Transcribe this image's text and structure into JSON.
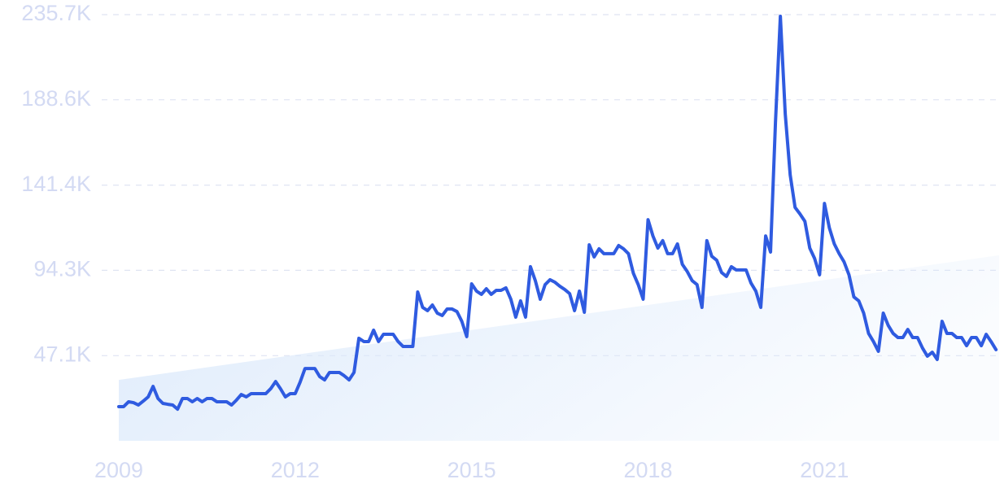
{
  "chart_data": {
    "type": "line",
    "x": [
      2009,
      2009.083,
      2009.167,
      2009.25,
      2009.333,
      2009.417,
      2009.5,
      2009.583,
      2009.667,
      2009.75,
      2009.833,
      2009.917,
      2010,
      2010.083,
      2010.167,
      2010.25,
      2010.333,
      2010.417,
      2010.5,
      2010.583,
      2010.667,
      2010.75,
      2010.833,
      2010.917,
      2011,
      2011.083,
      2011.167,
      2011.25,
      2011.333,
      2011.417,
      2011.5,
      2011.583,
      2011.667,
      2011.75,
      2011.833,
      2011.917,
      2012,
      2012.083,
      2012.167,
      2012.25,
      2012.333,
      2012.417,
      2012.5,
      2012.583,
      2012.667,
      2012.75,
      2012.833,
      2012.917,
      2013,
      2013.083,
      2013.167,
      2013.25,
      2013.333,
      2013.417,
      2013.5,
      2013.583,
      2013.667,
      2013.75,
      2013.833,
      2013.917,
      2014,
      2014.083,
      2014.167,
      2014.25,
      2014.333,
      2014.417,
      2014.5,
      2014.583,
      2014.667,
      2014.75,
      2014.833,
      2014.917,
      2015,
      2015.083,
      2015.167,
      2015.25,
      2015.333,
      2015.417,
      2015.5,
      2015.583,
      2015.667,
      2015.75,
      2015.833,
      2015.917,
      2016,
      2016.083,
      2016.167,
      2016.25,
      2016.333,
      2016.417,
      2016.5,
      2016.583,
      2016.667,
      2016.75,
      2016.833,
      2016.917,
      2017,
      2017.083,
      2017.167,
      2017.25,
      2017.333,
      2017.417,
      2017.5,
      2017.583,
      2017.667,
      2017.75,
      2017.833,
      2017.917,
      2018,
      2018.083,
      2018.167,
      2018.25,
      2018.333,
      2018.417,
      2018.5,
      2018.583,
      2018.667,
      2018.75,
      2018.833,
      2018.917,
      2019,
      2019.083,
      2019.167,
      2019.25,
      2019.333,
      2019.417,
      2019.5,
      2019.583,
      2019.667,
      2019.75,
      2019.833,
      2019.917,
      2020,
      2020.083,
      2020.167,
      2020.25,
      2020.333,
      2020.417,
      2020.5,
      2020.583,
      2020.667,
      2020.75,
      2020.833,
      2020.917,
      2021,
      2021.083,
      2021.167,
      2021.25,
      2021.333,
      2021.417,
      2021.5,
      2021.583,
      2021.667,
      2021.75,
      2021.833,
      2021.917,
      2022,
      2022.083,
      2022.167,
      2022.25,
      2022.333,
      2022.417,
      2022.5,
      2022.583,
      2022.667,
      2022.75,
      2022.833,
      2022.917,
      2023,
      2023.083,
      2023.167,
      2023.25,
      2023.333,
      2023.417,
      2023.5,
      2023.583,
      2023.667,
      2023.75,
      2023.833,
      2023.917
    ],
    "values": [
      18900,
      18900,
      21600,
      21100,
      19800,
      22000,
      24300,
      30100,
      23400,
      20700,
      20200,
      19800,
      17500,
      23400,
      23400,
      21600,
      23400,
      21600,
      23400,
      23400,
      21600,
      21600,
      21600,
      19800,
      22500,
      25600,
      24300,
      26100,
      26100,
      26100,
      26100,
      28800,
      32800,
      28800,
      24300,
      26100,
      26100,
      32400,
      40000,
      40000,
      40000,
      35500,
      33700,
      37800,
      37800,
      37800,
      36000,
      33700,
      37800,
      56700,
      54900,
      54900,
      61200,
      54900,
      58900,
      58900,
      58900,
      54900,
      52200,
      52200,
      52200,
      82300,
      73800,
      72000,
      75100,
      70600,
      69300,
      72900,
      72900,
      71500,
      66100,
      57600,
      86800,
      82800,
      81000,
      84100,
      81000,
      83200,
      83200,
      84600,
      78300,
      68400,
      77400,
      68400,
      96300,
      88600,
      78300,
      86400,
      89100,
      87700,
      85500,
      83700,
      81400,
      72000,
      82800,
      71100,
      108400,
      101700,
      106200,
      103500,
      103500,
      103500,
      108000,
      106200,
      103500,
      92700,
      86400,
      78300,
      122300,
      113300,
      106600,
      110700,
      103500,
      103500,
      108900,
      97600,
      93600,
      88600,
      86400,
      73800,
      110700,
      102100,
      99900,
      93100,
      90900,
      96300,
      94500,
      94500,
      94500,
      87300,
      82800,
      73800,
      113300,
      104400,
      176300,
      234800,
      180800,
      147100,
      129100,
      125500,
      121400,
      106600,
      100800,
      91800,
      131300,
      117800,
      108900,
      103500,
      99000,
      91800,
      79600,
      77400,
      70600,
      59400,
      54900,
      49500,
      70600,
      63900,
      59400,
      57100,
      57100,
      61600,
      57100,
      57100,
      51300,
      46800,
      49000,
      45000,
      66100,
      59400,
      59400,
      57100,
      57100,
      52600,
      57100,
      57100,
      52600,
      58900,
      54900,
      50400
    ],
    "color": "#2f5be0",
    "trend": [
      33700,
      102600
    ],
    "trend_color": "#dbe9fb",
    "xlim": [
      2009,
      2023.97
    ],
    "xticks": [
      2009,
      2012,
      2015,
      2018,
      2021
    ],
    "ylim": [
      0,
      235700
    ],
    "yticks": [
      {
        "value": 47100,
        "label": "47.1K"
      },
      {
        "value": 94300,
        "label": "94.3K"
      },
      {
        "value": 141400,
        "label": "141.4K"
      },
      {
        "value": 188600,
        "label": "188.6K"
      },
      {
        "value": 235700,
        "label": "235.7K"
      }
    ],
    "grid": true
  }
}
